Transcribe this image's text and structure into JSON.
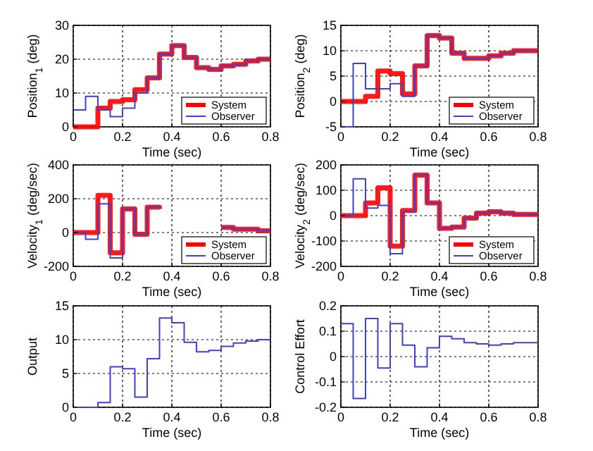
{
  "chart_data": [
    {
      "type": "step",
      "xlabel": "Time (sec)",
      "ylabel": "Position$_{1}$ (deg)",
      "x": [
        0,
        0.05,
        0.1,
        0.15,
        0.2,
        0.25,
        0.3,
        0.35,
        0.4,
        0.45,
        0.5,
        0.55,
        0.6,
        0.65,
        0.7,
        0.75,
        0.8
      ],
      "xlim": [
        0,
        0.8
      ],
      "xticks": [
        0,
        0.2,
        0.4,
        0.6,
        0.8
      ],
      "ylim": [
        0,
        30
      ],
      "yticks": [
        0,
        10,
        20,
        30
      ],
      "grid": true,
      "legend": "bottom right",
      "series": [
        {
          "name": "System",
          "color": "#ff0000",
          "values": [
            0,
            0,
            5.5,
            7.5,
            8,
            11,
            14.5,
            21.5,
            24,
            20.5,
            17.5,
            17,
            18,
            18.5,
            19.5,
            20,
            20
          ]
        },
        {
          "name": "Observer",
          "color": "#4040d0",
          "values": [
            5,
            9,
            5,
            3,
            5.5,
            10,
            14.5,
            21.5,
            24,
            20.5,
            17.5,
            17,
            18,
            18.5,
            19.5,
            20,
            20
          ]
        }
      ]
    },
    {
      "type": "step",
      "xlabel": "Time (sec)",
      "ylabel": "Position$_{2}$ (deg)",
      "x": [
        0,
        0.05,
        0.1,
        0.15,
        0.2,
        0.25,
        0.3,
        0.35,
        0.4,
        0.45,
        0.5,
        0.55,
        0.6,
        0.65,
        0.7,
        0.75,
        0.8
      ],
      "xlim": [
        0,
        0.8
      ],
      "xticks": [
        0,
        0.2,
        0.4,
        0.6,
        0.8
      ],
      "ylim": [
        -5,
        15
      ],
      "yticks": [
        -5,
        0,
        5,
        10,
        15
      ],
      "grid": true,
      "legend": "bottom right",
      "series": [
        {
          "name": "System",
          "color": "#ff0000",
          "values": [
            0,
            0,
            1,
            6,
            5.5,
            1.5,
            7,
            13,
            12.5,
            9.5,
            8.5,
            8.5,
            9,
            9.5,
            10,
            10,
            10
          ]
        },
        {
          "name": "Observer",
          "color": "#4040d0",
          "values": [
            -5,
            7.5,
            2.5,
            2.5,
            3.5,
            1,
            7,
            13,
            12.5,
            9.5,
            8.5,
            8.5,
            9,
            9.5,
            10,
            10,
            10
          ]
        }
      ]
    },
    {
      "type": "step",
      "xlabel": "Time (sec)",
      "ylabel": "Velocity$_{1}$ (deg/sec)",
      "x": [
        0,
        0.05,
        0.1,
        0.15,
        0.2,
        0.25,
        0.3,
        0.35,
        0.4,
        0.45,
        0.5,
        0.55,
        0.6,
        0.65,
        0.7,
        0.75,
        0.8
      ],
      "xlim": [
        0,
        0.8
      ],
      "xticks": [
        0,
        0.2,
        0.4,
        0.6,
        0.8
      ],
      "ylim": [
        -200,
        400
      ],
      "yticks": [
        -200,
        0,
        200,
        400
      ],
      "grid": true,
      "legend": "bottom right",
      "series": [
        {
          "name": "System",
          "color": "#ff0000",
          "values": [
            0,
            0,
            220,
            -120,
            140,
            -10,
            150,
            140,
            null,
            null,
            null,
            null,
            30,
            20,
            20,
            10,
            10
          ]
        },
        {
          "name": "Observer",
          "color": "#4040d0",
          "values": [
            0,
            -40,
            170,
            -150,
            140,
            -10,
            150,
            140,
            null,
            null,
            null,
            null,
            30,
            20,
            20,
            10,
            10
          ]
        }
      ]
    },
    {
      "type": "step",
      "xlabel": "Time (sec)",
      "ylabel": "Velocity$_{2}$ (deg/sec)",
      "x": [
        0,
        0.05,
        0.1,
        0.15,
        0.2,
        0.25,
        0.3,
        0.35,
        0.4,
        0.45,
        0.5,
        0.55,
        0.6,
        0.65,
        0.7,
        0.75,
        0.8
      ],
      "xlim": [
        0,
        0.8
      ],
      "xticks": [
        0,
        0.2,
        0.4,
        0.6,
        0.8
      ],
      "ylim": [
        -200,
        200
      ],
      "yticks": [
        -200,
        -100,
        0,
        100,
        200
      ],
      "grid": true,
      "legend": "bottom right",
      "series": [
        {
          "name": "System",
          "color": "#ff0000",
          "values": [
            0,
            0,
            50,
            110,
            -120,
            20,
            160,
            50,
            -50,
            -45,
            -10,
            10,
            15,
            10,
            5,
            5,
            5
          ]
        },
        {
          "name": "Observer",
          "color": "#4040d0",
          "values": [
            0,
            145,
            30,
            40,
            -150,
            15,
            160,
            50,
            -50,
            -45,
            -10,
            10,
            15,
            10,
            5,
            5,
            5
          ]
        }
      ]
    },
    {
      "type": "step",
      "xlabel": "Time (sec)",
      "ylabel": "Output",
      "x": [
        0,
        0.05,
        0.1,
        0.15,
        0.2,
        0.25,
        0.3,
        0.35,
        0.4,
        0.45,
        0.5,
        0.55,
        0.6,
        0.65,
        0.7,
        0.75,
        0.8
      ],
      "xlim": [
        0,
        0.8
      ],
      "xticks": [
        0,
        0.2,
        0.4,
        0.6,
        0.8
      ],
      "ylim": [
        0,
        15
      ],
      "yticks": [
        0,
        5,
        10,
        15
      ],
      "grid": true,
      "series": [
        {
          "color": "#4040d0",
          "values": [
            0,
            0,
            0.7,
            6,
            5.7,
            1.5,
            7.2,
            13.2,
            12.5,
            9.6,
            8.2,
            8.4,
            9,
            9.5,
            9.8,
            10,
            10
          ]
        }
      ]
    },
    {
      "type": "step",
      "xlabel": "Time (sec)",
      "ylabel": "Control Effort",
      "x": [
        0,
        0.05,
        0.1,
        0.15,
        0.2,
        0.25,
        0.3,
        0.35,
        0.4,
        0.45,
        0.5,
        0.55,
        0.6,
        0.65,
        0.7,
        0.75,
        0.8
      ],
      "xlim": [
        0,
        0.8
      ],
      "xticks": [
        0,
        0.2,
        0.4,
        0.6,
        0.8
      ],
      "ylim": [
        -0.2,
        0.2
      ],
      "yticks": [
        -0.2,
        -0.1,
        0,
        0.1,
        0.2
      ],
      "grid": true,
      "series": [
        {
          "color": "#4040d0",
          "values": [
            0.13,
            -0.165,
            0.15,
            -0.045,
            0.13,
            0.045,
            -0.04,
            0.035,
            0.08,
            0.07,
            0.055,
            0.05,
            0.045,
            0.05,
            0.055,
            0.055,
            0.055
          ]
        }
      ]
    }
  ]
}
